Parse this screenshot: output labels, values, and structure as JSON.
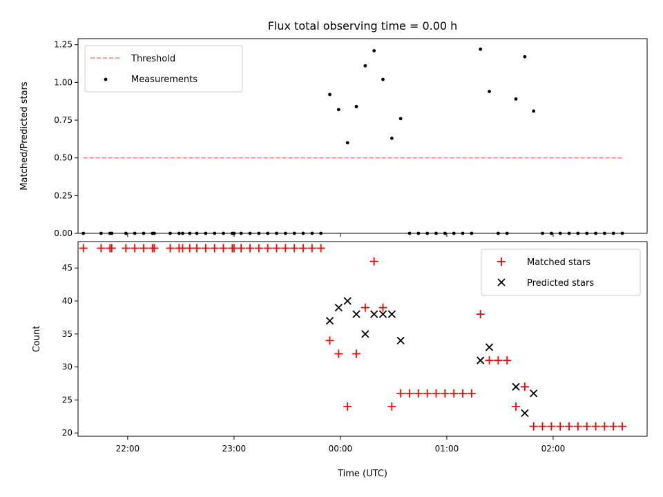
{
  "chart_data": [
    {
      "type": "scatter",
      "title": "Flux total observing time = 0.00 h",
      "xlabel": "",
      "ylabel": "Matched/Predicted stars",
      "xlim": [
        "21:32",
        "02:53"
      ],
      "ylim": [
        0,
        1.29
      ],
      "x_tick_labels": [],
      "y_ticks": [
        0.0,
        0.25,
        0.5,
        0.75,
        1.0,
        1.25
      ],
      "y_tick_labels": [
        "0.00",
        "0.25",
        "0.50",
        "0.75",
        "1.00",
        "1.25"
      ],
      "legend_position": "top-left",
      "threshold": {
        "name": "Threshold",
        "value": 0.5,
        "x_range": [
          "21:35",
          "02:40"
        ],
        "color": "#ff7f7f",
        "style": "dashed"
      },
      "series": [
        {
          "name": "Measurements",
          "marker": "dot",
          "color": "#000000",
          "x": [
            "21:35",
            "21:45",
            "21:50",
            "21:51",
            "21:59",
            "22:04",
            "22:09",
            "22:14",
            "22:15",
            "22:24",
            "22:29",
            "22:31",
            "22:35",
            "22:39",
            "22:44",
            "22:49",
            "22:54",
            "22:59",
            "23:00",
            "23:04",
            "23:09",
            "23:14",
            "23:19",
            "23:24",
            "23:29",
            "23:34",
            "23:39",
            "23:44",
            "23:49",
            "23:54",
            "23:59",
            "00:04",
            "00:09",
            "00:14",
            "00:19",
            "00:24",
            "00:29",
            "00:34",
            "00:39",
            "00:44",
            "00:49",
            "00:54",
            "00:59",
            "01:04",
            "01:09",
            "01:14",
            "01:19",
            "01:24",
            "01:29",
            "01:34",
            "01:39",
            "01:44",
            "01:49",
            "01:54",
            "01:59",
            "02:04",
            "02:09",
            "02:14",
            "02:19",
            "02:24",
            "02:29",
            "02:34",
            "02:39"
          ],
          "y": [
            0,
            0,
            0,
            0,
            0,
            0,
            0,
            0,
            0,
            0,
            0,
            0,
            0,
            0,
            0,
            0,
            0,
            0,
            0,
            0,
            0,
            0,
            0,
            0,
            0,
            0,
            0,
            0,
            0,
            0.92,
            0.82,
            0.6,
            0.84,
            1.11,
            1.21,
            1.02,
            0.63,
            0.76,
            0,
            0,
            0,
            0,
            0,
            0,
            0,
            0,
            1.22,
            0.94,
            0,
            0,
            0.89,
            1.17,
            0.81,
            0,
            0,
            0,
            0,
            0,
            0,
            0,
            0,
            0,
            0
          ]
        }
      ]
    },
    {
      "type": "scatter",
      "title": "",
      "xlabel": "Time (UTC)",
      "ylabel": "Count",
      "xlim": [
        "21:32",
        "02:53"
      ],
      "ylim": [
        19.5,
        49
      ],
      "x_ticks": [
        "22:00",
        "23:00",
        "00:00",
        "01:00",
        "02:00"
      ],
      "x_tick_labels": [
        "22:00",
        "23:00",
        "00:00",
        "01:00",
        "02:00"
      ],
      "y_ticks": [
        20,
        25,
        30,
        35,
        40,
        45
      ],
      "y_tick_labels": [
        "20",
        "25",
        "30",
        "35",
        "40",
        "45"
      ],
      "legend_position": "top-right",
      "series": [
        {
          "name": "Matched stars",
          "marker": "plus",
          "color": "#ff0000",
          "x": [
            "21:35",
            "21:45",
            "21:50",
            "21:51",
            "21:59",
            "22:04",
            "22:09",
            "22:14",
            "22:15",
            "22:24",
            "22:29",
            "22:31",
            "22:35",
            "22:39",
            "22:44",
            "22:49",
            "22:54",
            "22:59",
            "23:00",
            "23:04",
            "23:09",
            "23:14",
            "23:19",
            "23:24",
            "23:29",
            "23:34",
            "23:39",
            "23:44",
            "23:49",
            "23:54",
            "23:59",
            "00:04",
            "00:09",
            "00:14",
            "00:19",
            "00:24",
            "00:29",
            "00:34",
            "00:39",
            "00:44",
            "00:49",
            "00:54",
            "00:59",
            "01:04",
            "01:09",
            "01:14",
            "01:19",
            "01:24",
            "01:29",
            "01:34",
            "01:39",
            "01:44",
            "01:49",
            "01:54",
            "01:59",
            "02:04",
            "02:09",
            "02:14",
            "02:19",
            "02:24",
            "02:29",
            "02:34",
            "02:39"
          ],
          "y": [
            48,
            48,
            48,
            48,
            48,
            48,
            48,
            48,
            48,
            48,
            48,
            48,
            48,
            48,
            48,
            48,
            48,
            48,
            48,
            48,
            48,
            48,
            48,
            48,
            48,
            48,
            48,
            48,
            48,
            34,
            32,
            24,
            32,
            39,
            46,
            39,
            24,
            26,
            26,
            26,
            26,
            26,
            26,
            26,
            26,
            26,
            38,
            31,
            31,
            31,
            24,
            27,
            21,
            21,
            21,
            21,
            21,
            21,
            21,
            21,
            21,
            21,
            21
          ]
        },
        {
          "name": "Predicted stars",
          "marker": "x",
          "color": "#000000",
          "x": [
            "23:54",
            "23:59",
            "00:04",
            "00:09",
            "00:14",
            "00:19",
            "00:24",
            "00:29",
            "00:34",
            "01:19",
            "01:24",
            "01:39",
            "01:44",
            "01:49"
          ],
          "y": [
            37,
            39,
            40,
            38,
            35,
            38,
            38,
            38,
            34,
            31,
            33,
            27,
            23,
            26
          ]
        }
      ]
    }
  ]
}
